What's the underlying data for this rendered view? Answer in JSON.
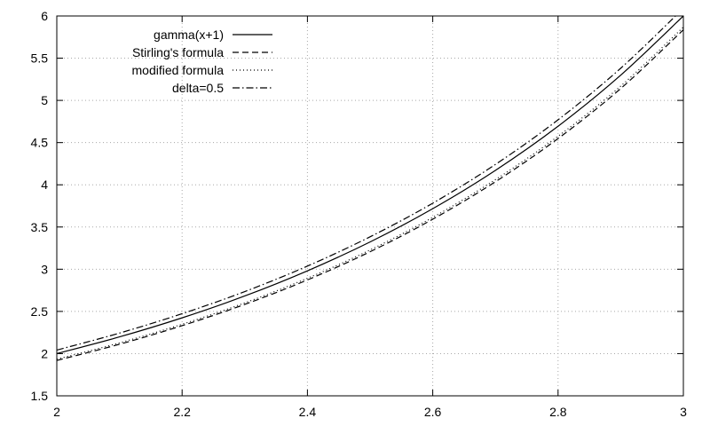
{
  "chart_data": {
    "type": "line",
    "title": "",
    "xlabel": "",
    "ylabel": "",
    "xlim": [
      2,
      3
    ],
    "ylim": [
      1.5,
      6
    ],
    "grid": true,
    "legend_position": "top-left",
    "x_ticks": [
      2,
      2.2,
      2.4,
      2.6,
      2.8,
      3
    ],
    "x_tick_labels": [
      "2",
      "2.2",
      "2.4",
      "2.6",
      "2.8",
      "3"
    ],
    "y_ticks": [
      1.5,
      2,
      2.5,
      3,
      3.5,
      4,
      4.5,
      5,
      5.5,
      6
    ],
    "y_tick_labels": [
      "1.5",
      "2",
      "2.5",
      "3",
      "3.5",
      "4",
      "4.5",
      "5",
      "5.5",
      "6"
    ],
    "x": [
      2.0,
      2.1,
      2.2,
      2.3,
      2.4,
      2.5,
      2.6,
      2.7,
      2.8,
      2.9,
      3.0
    ],
    "series": [
      {
        "name": "gamma(x+1)",
        "style": "solid",
        "values": [
          2.0,
          2.198,
          2.424,
          2.683,
          2.981,
          3.323,
          3.717,
          4.171,
          4.694,
          5.299,
          6.0
        ]
      },
      {
        "name": "Stirling's formula",
        "style": "dashed",
        "values": [
          1.919,
          2.111,
          2.331,
          2.583,
          2.873,
          3.207,
          3.592,
          4.036,
          4.548,
          5.14,
          5.836
        ]
      },
      {
        "name": "modified formula",
        "style": "dotted",
        "values": [
          1.934,
          2.127,
          2.348,
          2.601,
          2.893,
          3.228,
          3.614,
          4.061,
          4.575,
          5.169,
          5.868
        ]
      },
      {
        "name": "delta=0.5",
        "style": "dashdot",
        "values": [
          2.042,
          2.243,
          2.473,
          2.735,
          3.037,
          3.384,
          3.782,
          4.241,
          4.77,
          5.381,
          6.09
        ]
      }
    ]
  }
}
